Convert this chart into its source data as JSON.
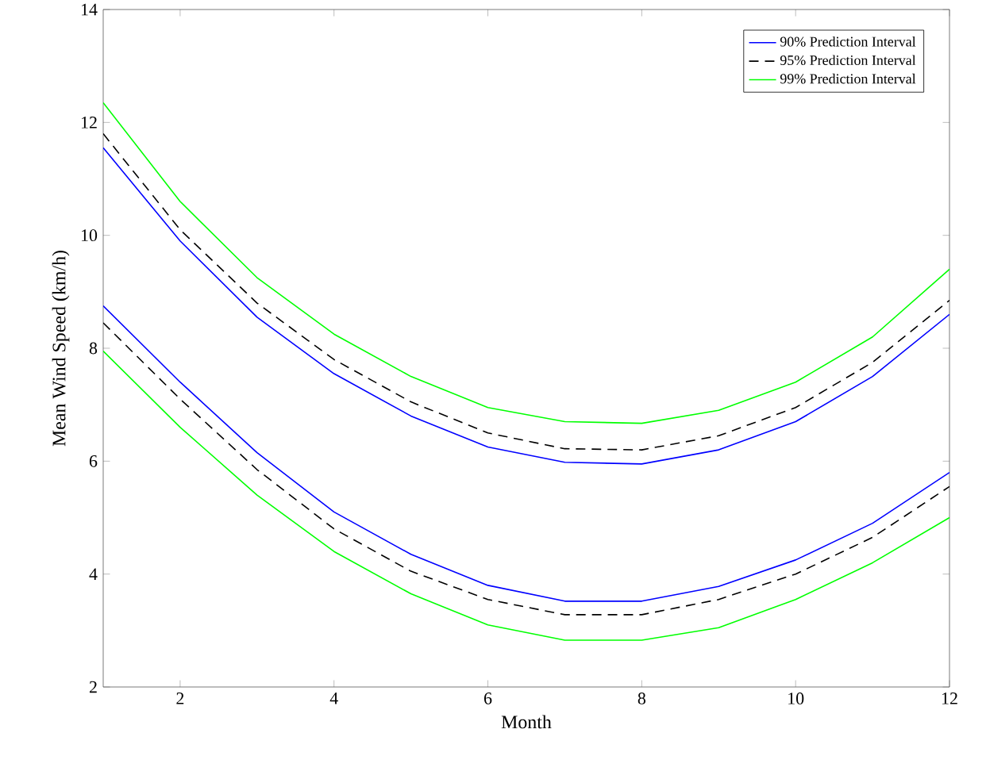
{
  "chart_data": {
    "type": "line",
    "xlabel": "Month",
    "ylabel": "Mean Wind Speed (km/h)",
    "x": [
      1,
      2,
      3,
      4,
      5,
      6,
      7,
      8,
      9,
      10,
      11,
      12
    ],
    "series": [
      {
        "name": "90% Prediction Interval",
        "color": "#0000ff",
        "line_style": "solid",
        "values": [
          11.55,
          9.9,
          8.55,
          7.55,
          6.8,
          6.25,
          5.98,
          5.95,
          6.2,
          6.7,
          7.5,
          8.6
        ]
      },
      {
        "name": "95% Prediction Interval",
        "color": "#000000",
        "line_style": "dashed",
        "values": [
          11.8,
          10.1,
          8.8,
          7.8,
          7.05,
          6.5,
          6.22,
          6.2,
          6.45,
          6.95,
          7.75,
          8.85
        ]
      },
      {
        "name": "99% Prediction Interval",
        "color": "#00ff00",
        "line_style": "solid",
        "values": [
          12.35,
          10.6,
          9.25,
          8.25,
          7.5,
          6.95,
          6.7,
          6.67,
          6.9,
          7.4,
          8.2,
          9.4
        ]
      },
      {
        "color": "#0000ff",
        "line_style": "solid",
        "values": [
          8.75,
          7.4,
          6.15,
          5.1,
          4.35,
          3.8,
          3.52,
          3.52,
          3.78,
          4.25,
          4.9,
          5.8
        ]
      },
      {
        "color": "#000000",
        "line_style": "dashed",
        "values": [
          8.45,
          7.1,
          5.85,
          4.8,
          4.05,
          3.55,
          3.28,
          3.28,
          3.55,
          4.0,
          4.65,
          5.55
        ]
      },
      {
        "color": "#00ff00",
        "line_style": "solid",
        "values": [
          7.95,
          6.6,
          5.4,
          4.4,
          3.65,
          3.1,
          2.83,
          2.83,
          3.05,
          3.55,
          4.2,
          5.0
        ]
      }
    ],
    "xlim": [
      1,
      12
    ],
    "ylim": [
      2,
      14
    ],
    "xticks": [
      2,
      4,
      6,
      8,
      10,
      12
    ],
    "yticks": [
      2,
      4,
      6,
      8,
      10,
      12,
      14
    ],
    "grid": false,
    "legend": "top right",
    "marker": "none"
  }
}
